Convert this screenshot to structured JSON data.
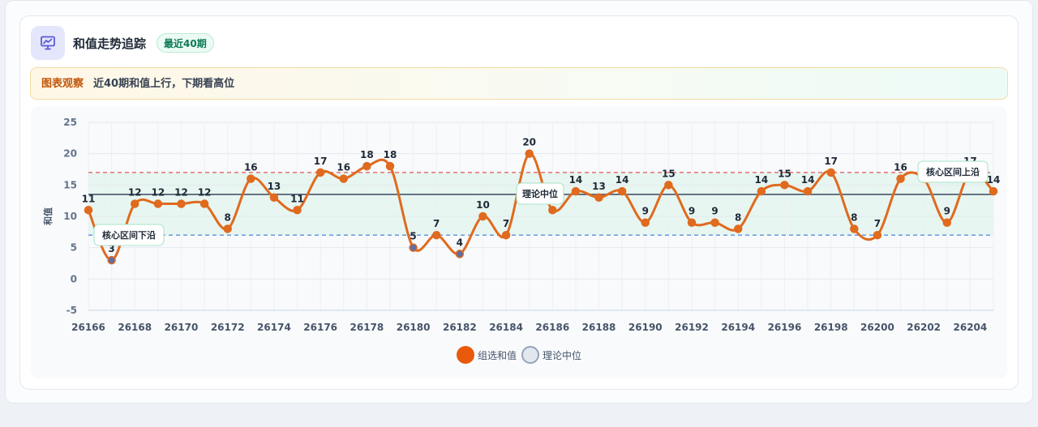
{
  "header": {
    "title": "和值走势追踪",
    "badge": "最近40期",
    "icon": "chart-presentation-icon"
  },
  "observation": {
    "label": "图表观察",
    "text": "近40期和值上行，下期看高位"
  },
  "colors": {
    "line": "#e06a1e",
    "median_line": "#475569",
    "upper_line": "#e25555",
    "lower_line": "#5b8fdc",
    "band_fill": "#d8f3e6",
    "icon_bg": "#e4e7fb",
    "icon_color": "#5b5bd6"
  },
  "chart_data": {
    "type": "line",
    "ylabel": "和值",
    "ylim": [
      -5,
      25
    ],
    "yticks": [
      25,
      20,
      15,
      10,
      5,
      0,
      -5
    ],
    "x": [
      26166,
      26167,
      26168,
      26169,
      26170,
      26171,
      26172,
      26173,
      26174,
      26175,
      26176,
      26177,
      26178,
      26179,
      26180,
      26181,
      26182,
      26183,
      26184,
      26185,
      26186,
      26187,
      26188,
      26189,
      26190,
      26191,
      26192,
      26193,
      26194,
      26195,
      26196,
      26197,
      26198,
      26199,
      26200,
      26201,
      26202,
      26203,
      26204,
      26205
    ],
    "xtick_labels": [
      "26166",
      "26168",
      "26170",
      "26172",
      "26174",
      "26176",
      "26178",
      "26180",
      "26182",
      "26184",
      "26186",
      "26188",
      "26190",
      "26192",
      "26194",
      "26196",
      "26198",
      "26200",
      "26202",
      "26204"
    ],
    "series": [
      {
        "name": "组选和值",
        "values": [
          11,
          3,
          12,
          12,
          12,
          12,
          8,
          16,
          13,
          11,
          17,
          16,
          18,
          18,
          5,
          7,
          4,
          10,
          7,
          20,
          11,
          14,
          13,
          14,
          9,
          15,
          9,
          9,
          8,
          14,
          15,
          14,
          17,
          8,
          7,
          16,
          16,
          9,
          17,
          14
        ]
      }
    ],
    "reference_lines": {
      "median": {
        "name": "理论中位",
        "value": 13.5
      },
      "upper": {
        "name": "核心区间上沿",
        "value": 17
      },
      "lower": {
        "name": "核心区间下沿",
        "value": 7
      }
    },
    "legend": [
      "组选和值",
      "理论中位"
    ],
    "legend_position": "bottom-center",
    "grid": true
  }
}
